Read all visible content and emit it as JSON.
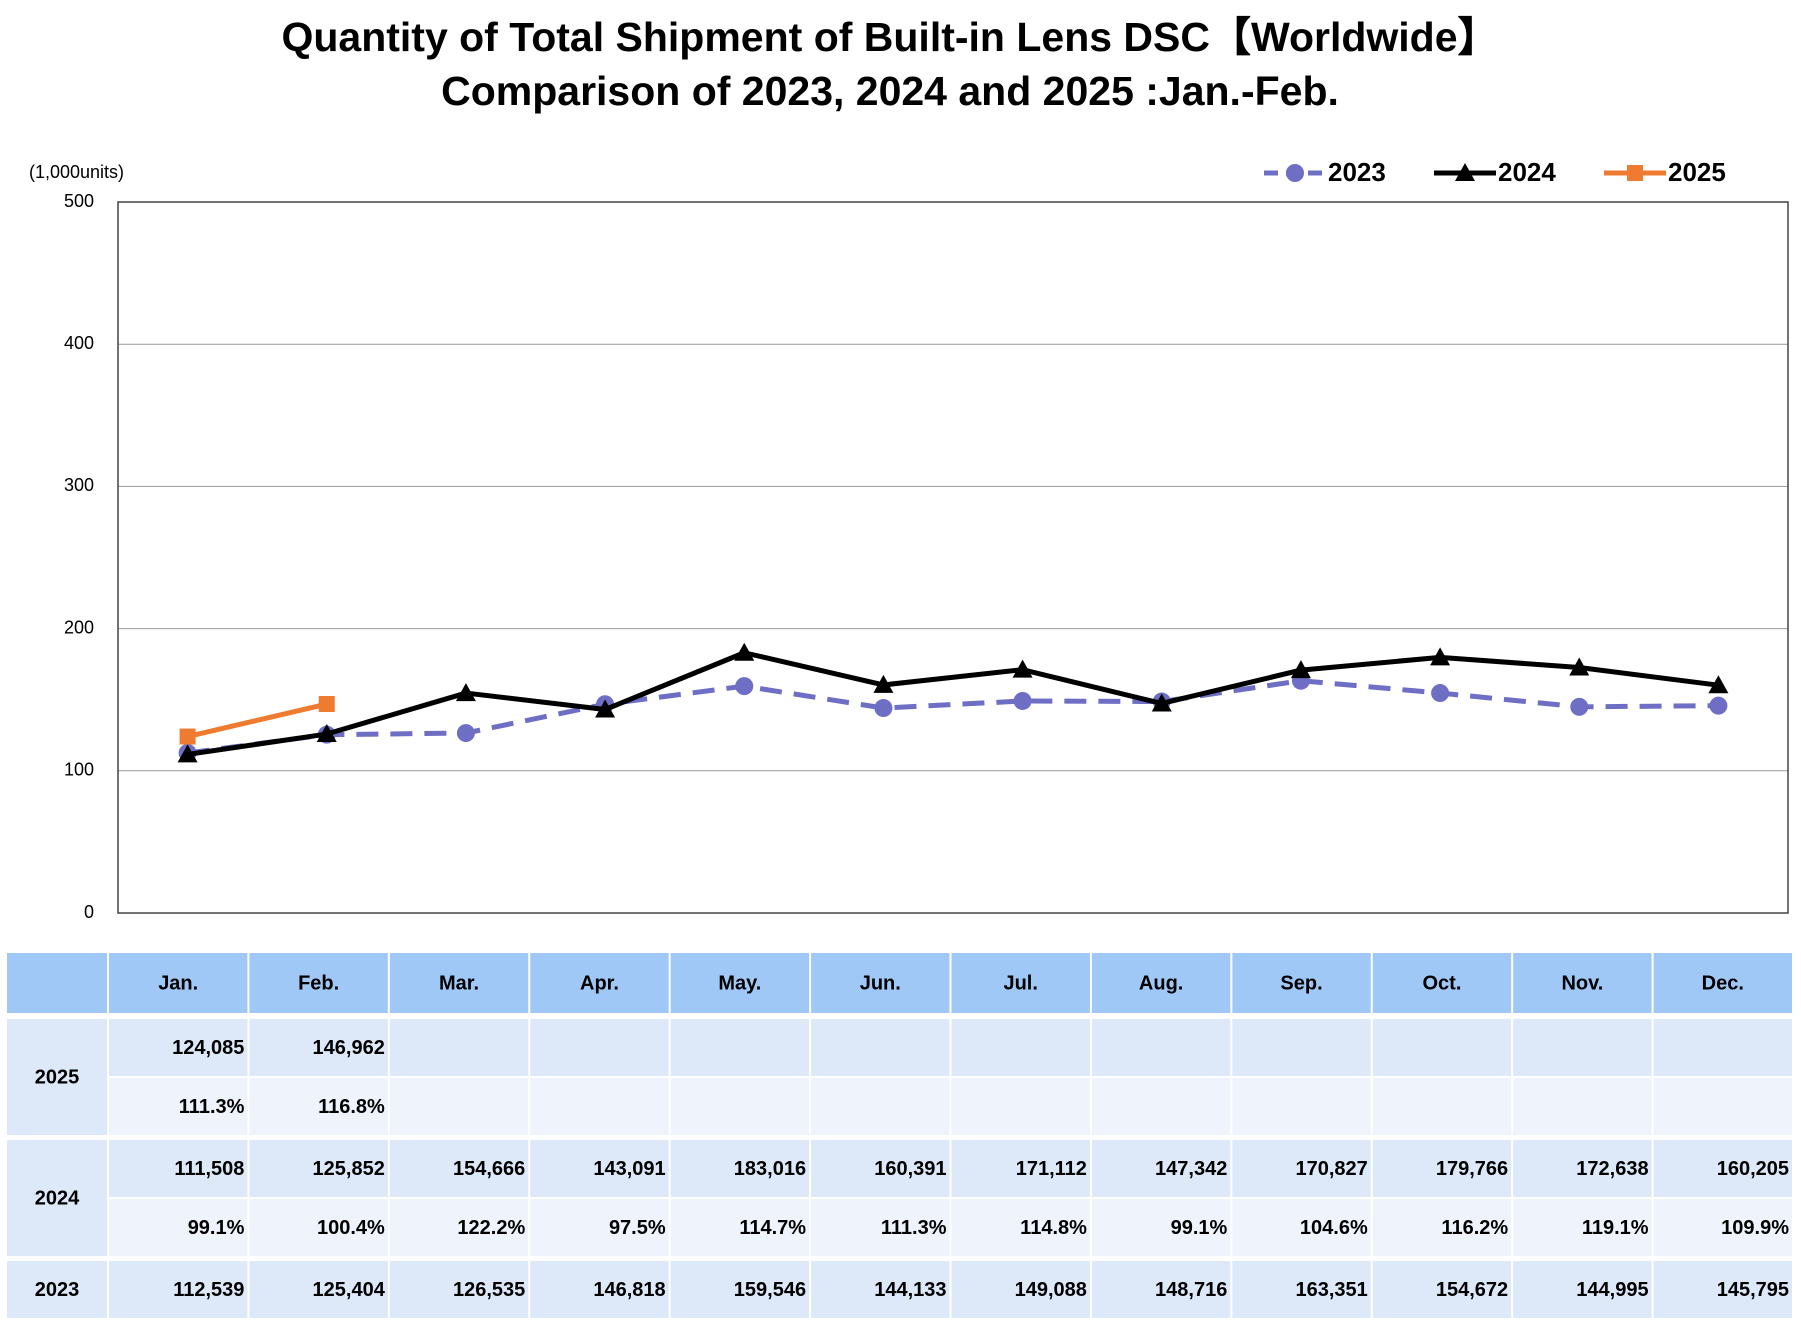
{
  "chart_data": {
    "type": "line",
    "title": "Quantity of Total Shipment of Built-in Lens DSC【Worldwide】",
    "subtitle": "Comparison of 2023, 2024 and 2025 :Jan.-Feb.",
    "y_label": "(1,000units)",
    "categories": [
      "Jan.",
      "Feb.",
      "Mar.",
      "Apr.",
      "May.",
      "Jun.",
      "Jul.",
      "Aug.",
      "Sep.",
      "Oct.",
      "Nov.",
      "Dec."
    ],
    "ylim": [
      0,
      500
    ],
    "yticks": [
      0,
      100,
      200,
      300,
      400,
      500
    ],
    "grid": true,
    "legend": "top-right",
    "series": [
      {
        "name": "2023",
        "color": "#6e6ec4",
        "line_style": "dashed",
        "marker": "circle",
        "values": [
          112.539,
          125.404,
          126.535,
          146.818,
          159.546,
          144.133,
          149.088,
          148.716,
          163.351,
          154.672,
          144.995,
          145.795
        ],
        "value_labels": [
          "112,539",
          "125,404",
          "126,535",
          "146,818",
          "159,546",
          "144,133",
          "149,088",
          "148,716",
          "163,351",
          "154,672",
          "144,995",
          "145,795"
        ]
      },
      {
        "name": "2024",
        "color": "#000000",
        "line_style": "solid",
        "marker": "triangle",
        "values": [
          111.508,
          125.852,
          154.666,
          143.091,
          183.016,
          160.391,
          171.112,
          147.342,
          170.827,
          179.766,
          172.638,
          160.205
        ],
        "value_labels": [
          "111,508",
          "125,852",
          "154,666",
          "143,091",
          "183,016",
          "160,391",
          "171,112",
          "147,342",
          "170,827",
          "179,766",
          "172,638",
          "160,205"
        ],
        "ratio_labels": [
          "99.1%",
          "100.4%",
          "122.2%",
          "97.5%",
          "114.7%",
          "111.3%",
          "114.8%",
          "99.1%",
          "104.6%",
          "116.2%",
          "119.1%",
          "109.9%"
        ]
      },
      {
        "name": "2025",
        "color": "#ef7b30",
        "line_style": "solid",
        "marker": "square",
        "values": [
          124.085,
          146.962,
          null,
          null,
          null,
          null,
          null,
          null,
          null,
          null,
          null,
          null
        ],
        "value_labels": [
          "124,085",
          "146,962",
          null,
          null,
          null,
          null,
          null,
          null,
          null,
          null,
          null,
          null
        ],
        "ratio_labels": [
          "111.3%",
          "116.8%",
          null,
          null,
          null,
          null,
          null,
          null,
          null,
          null,
          null,
          null
        ]
      }
    ]
  }
}
